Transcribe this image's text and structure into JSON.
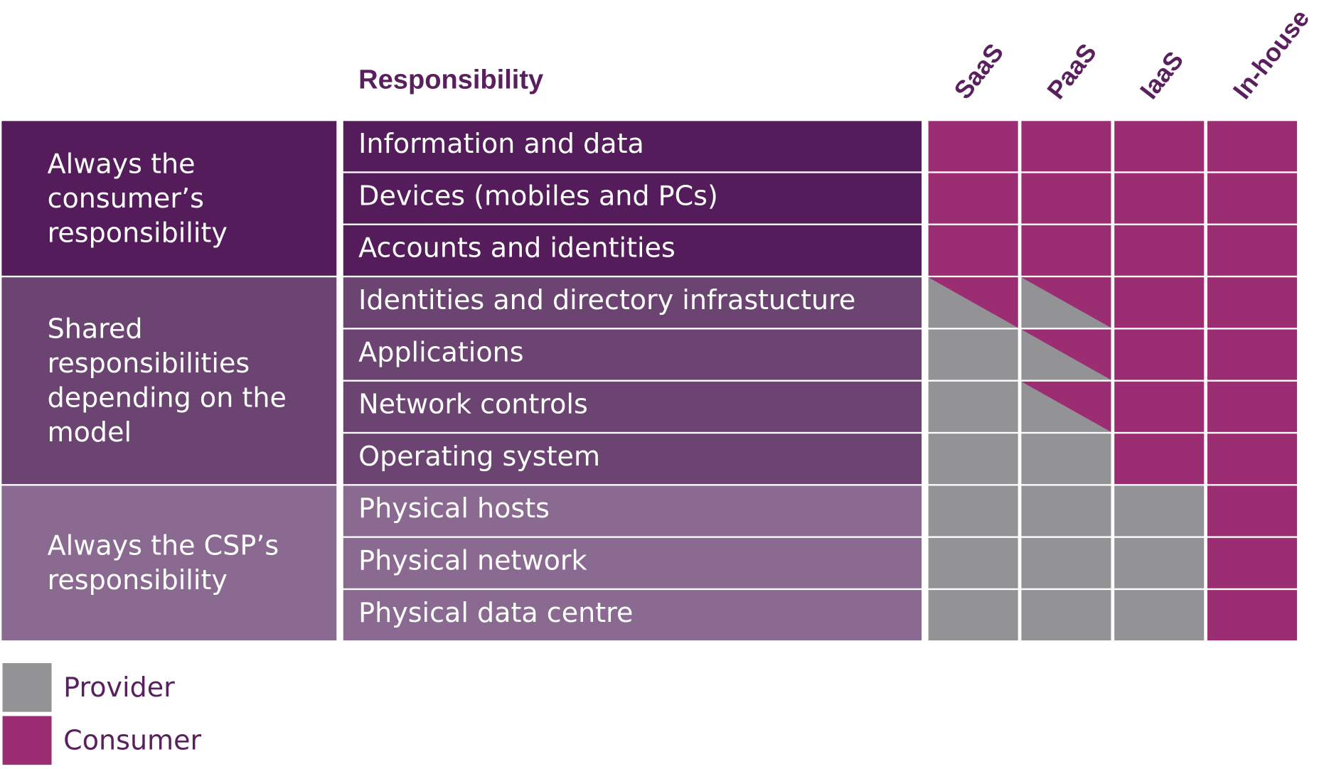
{
  "header": {
    "title": "Responsibility"
  },
  "models": [
    "SaaS",
    "PaaS",
    "IaaS",
    "In-house"
  ],
  "groups": [
    {
      "label": "Always the consumer’s responsibility",
      "color": "#541c5a",
      "rows": 3
    },
    {
      "label": "Shared responsibilities depending on the model",
      "color": "#6b4472",
      "rows": 4
    },
    {
      "label": "Always the CSP’s responsibility",
      "color": "#8a6a90",
      "rows": 3
    }
  ],
  "rows": [
    {
      "label": "Information and data",
      "cells": [
        "consumer",
        "consumer",
        "consumer",
        "consumer"
      ]
    },
    {
      "label": "Devices (mobiles and PCs)",
      "cells": [
        "consumer",
        "consumer",
        "consumer",
        "consumer"
      ]
    },
    {
      "label": "Accounts and identities",
      "cells": [
        "consumer",
        "consumer",
        "consumer",
        "consumer"
      ]
    },
    {
      "label": "Identities and directory infrastucture",
      "cells": [
        "shared",
        "shared",
        "consumer",
        "consumer"
      ]
    },
    {
      "label": "Applications",
      "cells": [
        "provider",
        "shared",
        "consumer",
        "consumer"
      ]
    },
    {
      "label": "Network controls",
      "cells": [
        "provider",
        "shared",
        "consumer",
        "consumer"
      ]
    },
    {
      "label": "Operating system",
      "cells": [
        "provider",
        "provider",
        "consumer",
        "consumer"
      ]
    },
    {
      "label": "Physical hosts",
      "cells": [
        "provider",
        "provider",
        "provider",
        "consumer"
      ]
    },
    {
      "label": "Physical network",
      "cells": [
        "provider",
        "provider",
        "provider",
        "consumer"
      ]
    },
    {
      "label": "Physical data centre",
      "cells": [
        "provider",
        "provider",
        "provider",
        "consumer"
      ]
    }
  ],
  "legend": [
    {
      "label": "Provider",
      "color": "#939395"
    },
    {
      "label": "Consumer",
      "color": "#9b2d73"
    }
  ]
}
